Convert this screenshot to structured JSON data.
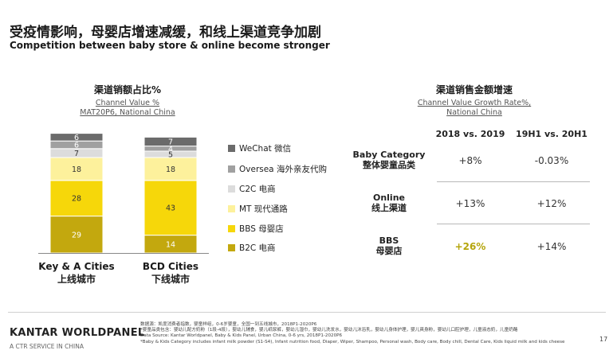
{
  "title": {
    "cn": "受疫情影响，母婴店增速减缓，和线上渠道竞争加剧",
    "en": "Competition between baby store & online become stronger"
  },
  "left_header": {
    "title": "渠道销额占比%",
    "subtitle1": "Channel Value %",
    "subtitle2": "MAT20P6, National China"
  },
  "right_header": {
    "title": "渠道销售金额增速",
    "subtitle1": "Channel Value Growth Rate%,",
    "subtitle2": "National China"
  },
  "chart_data": {
    "type": "bar",
    "stacked": true,
    "title": "渠道销额占比%",
    "subtitle": "Channel Value % MAT20P6, National China",
    "categories": [
      "Key & A Cities 上线城市",
      "BCD Cities 下线城市"
    ],
    "category_labels": [
      {
        "en": "Key & A Cities",
        "cn": "上线城市"
      },
      {
        "en": "BCD Cities",
        "cn": "下线城市"
      }
    ],
    "series": [
      {
        "name": "B2C 电商",
        "color": "#c3a80e",
        "values": [
          29,
          14
        ]
      },
      {
        "name": "BBS 母婴店",
        "color": "#f6d70a",
        "values": [
          28,
          43
        ]
      },
      {
        "name": "MT 现代通路",
        "color": "#fdf19c",
        "values": [
          18,
          18
        ]
      },
      {
        "name": "C2C 电商",
        "color": "#dcdcdc",
        "values": [
          7,
          5
        ]
      },
      {
        "name": "Oversea 海外亲友代购",
        "color": "#a0a0a0",
        "values": [
          6,
          4
        ]
      },
      {
        "name": "WeChat 微信",
        "color": "#6b6b6b",
        "values": [
          6,
          7
        ]
      }
    ],
    "legend_order": [
      "WeChat 微信",
      "Oversea 海外亲友代购",
      "C2C 电商",
      "MT 现代通路",
      "BBS 母婴店",
      "B2C 电商"
    ],
    "ylim": [
      0,
      100
    ]
  },
  "growth_table": {
    "columns": [
      "2018 vs. 2019",
      "19H1 vs. 20H1"
    ],
    "rows": [
      {
        "label_en": "Baby Category",
        "label_cn": "整体婴童品类",
        "v1": "+8%",
        "v2": "-0.03%",
        "highlight": false
      },
      {
        "label_en": "Online",
        "label_cn": "线上渠道",
        "v1": "+13%",
        "v2": "+12%",
        "highlight": false
      },
      {
        "label_en": "BBS",
        "label_cn": "母婴店",
        "v1": "+26%",
        "v2": "+14%",
        "highlight": true
      }
    ]
  },
  "footer": {
    "brand": "KANTAR WORLDPANEL",
    "brand_sub": "A CTR SERVICE IN CHINA",
    "notes": [
      "数据源：凯度消费者指数，婴童样组，0-6岁婴童，全国一到五线城市，2018P1-2020P6",
      "*婴童品类包含：婴幼儿配方奶粉（1段-4段），婴幼儿辅食，婴儿纸尿裤，婴幼儿湿巾，婴幼儿洗发水，婴幼儿沐浴乳，婴幼儿身体护理，婴儿爽身粉，婴幼儿口腔护理，儿童液态奶，儿童奶酪",
      "Data Source: Kantar Worldpanel, Baby & Kids Panel, Urban China, 0-6 yrs, 2018P1-2020P6",
      "*Baby & Kids Category includes infant milk powder (S1-S4), Infant nutrition food, Diaper, Wiper, Shampoo, Personal wash, Body care, Body chill, Dental Care, Kids liquid milk and kids cheese"
    ],
    "page_number": "17"
  }
}
